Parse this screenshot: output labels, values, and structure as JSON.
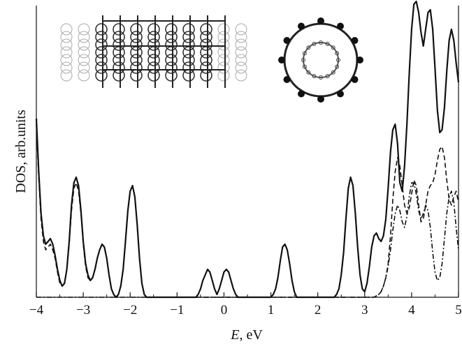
{
  "chart_data": {
    "type": "line",
    "xlabel_italic": "E",
    "xlabel_rest": ", eV",
    "ylabel": "DOS, arb.units",
    "xlim": [
      -4,
      5
    ],
    "ylim": [
      0,
      1
    ],
    "x_ticks": [
      "−4",
      "−3",
      "−2",
      "−1",
      "0",
      "1",
      "2",
      "3",
      "4",
      "5"
    ],
    "grid": false,
    "legend": "none",
    "inset_images": [
      "nanotube-side-view",
      "nanotube-cross-section"
    ],
    "series": [
      {
        "style": "solid",
        "x": [
          -4.0,
          -3.95,
          -3.9,
          -3.85,
          -3.8,
          -3.75,
          -3.7,
          -3.65,
          -3.6,
          -3.55,
          -3.5,
          -3.45,
          -3.4,
          -3.35,
          -3.3,
          -3.25,
          -3.2,
          -3.15,
          -3.1,
          -3.05,
          -3.0,
          -2.95,
          -2.9,
          -2.85,
          -2.8,
          -2.75,
          -2.7,
          -2.65,
          -2.6,
          -2.55,
          -2.5,
          -2.45,
          -2.4,
          -2.35,
          -2.3,
          -2.25,
          -2.2,
          -2.15,
          -2.1,
          -2.05,
          -2.0,
          -1.95,
          -1.9,
          -1.85,
          -1.8,
          -1.75,
          -1.7,
          -1.65,
          -1.6,
          -1.5,
          -1.0,
          -0.6,
          -0.55,
          -0.5,
          -0.45,
          -0.4,
          -0.35,
          -0.3,
          -0.25,
          -0.2,
          -0.15,
          -0.1,
          -0.05,
          0.0,
          0.05,
          0.1,
          0.15,
          0.2,
          0.25,
          0.3,
          0.35,
          0.4,
          0.5,
          0.8,
          1.0,
          1.05,
          1.1,
          1.15,
          1.2,
          1.25,
          1.3,
          1.35,
          1.4,
          1.45,
          1.5,
          1.55,
          1.6,
          2.0,
          2.3,
          2.35,
          2.4,
          2.45,
          2.5,
          2.55,
          2.6,
          2.65,
          2.7,
          2.75,
          2.8,
          2.85,
          2.9,
          2.95,
          3.0,
          3.05,
          3.1,
          3.15,
          3.2,
          3.25,
          3.3,
          3.35,
          3.4,
          3.45,
          3.5,
          3.55,
          3.6,
          3.65,
          3.7,
          3.75,
          3.8,
          3.85,
          3.9,
          3.95,
          4.0,
          4.05,
          4.1,
          4.15,
          4.2,
          4.25,
          4.3,
          4.35,
          4.4,
          4.45,
          4.5,
          4.55,
          4.6,
          4.65,
          4.7,
          4.75,
          4.8,
          4.85,
          4.9,
          4.95,
          5.0
        ],
        "y": [
          0.64,
          0.45,
          0.3,
          0.22,
          0.19,
          0.2,
          0.21,
          0.19,
          0.15,
          0.1,
          0.06,
          0.04,
          0.05,
          0.1,
          0.2,
          0.33,
          0.41,
          0.43,
          0.4,
          0.31,
          0.2,
          0.12,
          0.08,
          0.06,
          0.07,
          0.1,
          0.14,
          0.17,
          0.19,
          0.18,
          0.14,
          0.08,
          0.03,
          0.01,
          0.0,
          0.01,
          0.04,
          0.1,
          0.2,
          0.31,
          0.38,
          0.4,
          0.36,
          0.26,
          0.14,
          0.05,
          0.01,
          0.0,
          0.0,
          0.0,
          0.0,
          0.0,
          0.01,
          0.03,
          0.06,
          0.08,
          0.1,
          0.09,
          0.06,
          0.03,
          0.01,
          0.03,
          0.06,
          0.09,
          0.1,
          0.09,
          0.06,
          0.03,
          0.01,
          0.0,
          0.0,
          0.0,
          0.0,
          0.0,
          0.0,
          0.01,
          0.03,
          0.07,
          0.13,
          0.18,
          0.19,
          0.17,
          0.12,
          0.06,
          0.02,
          0.0,
          0.0,
          0.0,
          0.0,
          0.0,
          0.01,
          0.03,
          0.08,
          0.16,
          0.28,
          0.39,
          0.43,
          0.4,
          0.3,
          0.18,
          0.08,
          0.03,
          0.02,
          0.05,
          0.11,
          0.18,
          0.22,
          0.23,
          0.21,
          0.2,
          0.22,
          0.28,
          0.39,
          0.52,
          0.6,
          0.62,
          0.55,
          0.41,
          0.38,
          0.47,
          0.62,
          0.8,
          0.96,
          1.05,
          1.06,
          1.02,
          0.95,
          0.9,
          0.96,
          1.02,
          1.03,
          0.96,
          0.82,
          0.67,
          0.59,
          0.6,
          0.68,
          0.81,
          0.92,
          0.96,
          0.92,
          0.84,
          0.77
        ],
        "color": "#111111"
      },
      {
        "style": "dashed",
        "x": [
          -4.0,
          -3.95,
          -3.9,
          -3.85,
          -3.8,
          -3.75,
          -3.7,
          -3.65,
          -3.6,
          -3.55,
          -3.5,
          -3.45,
          -3.4,
          -3.35,
          -3.3,
          -3.25,
          -3.2,
          -3.15,
          -3.1,
          -3.05,
          -3.0,
          -2.95,
          -2.9,
          -2.85,
          -2.8,
          -2.75,
          -2.7,
          -2.65,
          -2.6,
          -2.55,
          -2.5,
          -2.45,
          -2.4,
          -2.35,
          -2.3,
          -2.25,
          -2.2,
          -2.15,
          -2.1,
          -2.05,
          -2.0,
          -1.95,
          -1.9,
          -1.85,
          -1.8,
          -1.75,
          -1.7,
          -1.65,
          -1.6,
          -1.5,
          3.0,
          3.2,
          3.3,
          3.35,
          3.4,
          3.45,
          3.5,
          3.55,
          3.6,
          3.65,
          3.7,
          3.75,
          3.8,
          3.85,
          3.9,
          3.95,
          4.0,
          4.05,
          4.1,
          4.15,
          4.2,
          4.25,
          4.3,
          4.35,
          4.4,
          4.45,
          4.5,
          4.55,
          4.6,
          4.65,
          4.7,
          4.75,
          4.8,
          4.85,
          4.9,
          4.95,
          5.0
        ],
        "y": [
          0.62,
          0.43,
          0.28,
          0.2,
          0.17,
          0.18,
          0.19,
          0.17,
          0.14,
          0.09,
          0.05,
          0.04,
          0.05,
          0.1,
          0.19,
          0.31,
          0.39,
          0.41,
          0.38,
          0.3,
          0.19,
          0.11,
          0.07,
          0.06,
          0.07,
          0.1,
          0.14,
          0.17,
          0.19,
          0.18,
          0.14,
          0.08,
          0.03,
          0.01,
          0.0,
          0.01,
          0.04,
          0.1,
          0.2,
          0.31,
          0.38,
          0.4,
          0.36,
          0.26,
          0.14,
          0.05,
          0.01,
          0.0,
          0.0,
          0.0,
          0.0,
          0.0,
          0.01,
          0.02,
          0.04,
          0.07,
          0.12,
          0.22,
          0.35,
          0.45,
          0.5,
          0.47,
          0.4,
          0.33,
          0.3,
          0.32,
          0.37,
          0.42,
          0.4,
          0.33,
          0.27,
          0.28,
          0.33,
          0.38,
          0.4,
          0.41,
          0.44,
          0.49,
          0.53,
          0.54,
          0.5,
          0.42,
          0.35,
          0.33,
          0.36,
          0.38,
          0.34
        ],
        "color": "#111111"
      },
      {
        "style": "dash-dot",
        "x": [
          -4.0,
          2.7,
          3.1,
          3.2,
          3.3,
          3.35,
          3.4,
          3.45,
          3.5,
          3.55,
          3.6,
          3.65,
          3.7,
          3.75,
          3.8,
          3.85,
          3.9,
          3.95,
          4.0,
          4.05,
          4.1,
          4.15,
          4.2,
          4.25,
          4.3,
          4.35,
          4.4,
          4.45,
          4.5,
          4.55,
          4.6,
          4.65,
          4.7,
          4.75,
          4.8,
          4.85,
          4.9,
          4.95,
          5.0
        ],
        "y": [
          0.0,
          0.0,
          0.0,
          0.0,
          0.01,
          0.02,
          0.04,
          0.07,
          0.11,
          0.17,
          0.24,
          0.3,
          0.33,
          0.31,
          0.27,
          0.25,
          0.29,
          0.36,
          0.41,
          0.41,
          0.37,
          0.31,
          0.28,
          0.3,
          0.33,
          0.31,
          0.25,
          0.16,
          0.09,
          0.06,
          0.07,
          0.12,
          0.21,
          0.3,
          0.36,
          0.38,
          0.34,
          0.25,
          0.17
        ],
        "color": "#111111"
      }
    ]
  }
}
